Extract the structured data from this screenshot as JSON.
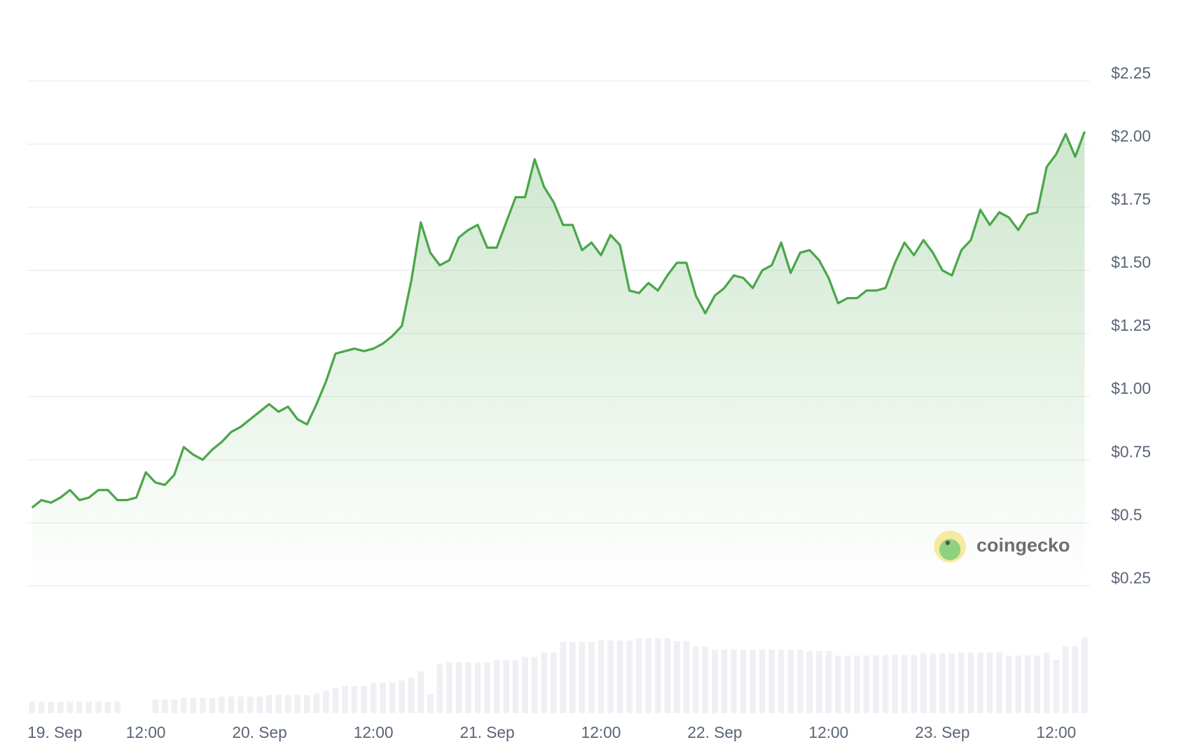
{
  "chart_data": {
    "type": "line",
    "categories": [
      "19. Sep",
      null,
      null,
      null,
      null,
      null,
      null,
      null,
      null,
      null,
      null,
      null,
      "12:00",
      null,
      null,
      null,
      null,
      null,
      null,
      null,
      null,
      null,
      null,
      null,
      "20. Sep",
      null,
      null,
      null,
      null,
      null,
      null,
      null,
      null,
      null,
      null,
      null,
      "12:00",
      null,
      null,
      null,
      null,
      null,
      null,
      null,
      null,
      null,
      null,
      null,
      "21. Sep",
      null,
      null,
      null,
      null,
      null,
      null,
      null,
      null,
      null,
      null,
      null,
      "12:00",
      null,
      null,
      null,
      null,
      null,
      null,
      null,
      null,
      null,
      null,
      null,
      "22. Sep",
      null,
      null,
      null,
      null,
      null,
      null,
      null,
      null,
      null,
      null,
      null,
      "12:00",
      null,
      null,
      null,
      null,
      null,
      null,
      null,
      null,
      null,
      null,
      null,
      "23. Sep",
      null,
      null,
      null,
      null,
      null,
      null,
      null,
      null,
      null,
      null,
      null,
      "12:00",
      null,
      null,
      null
    ],
    "values": [
      0.56,
      0.59,
      0.58,
      0.6,
      0.63,
      0.59,
      0.6,
      0.63,
      0.63,
      0.59,
      0.59,
      0.6,
      0.7,
      0.66,
      0.65,
      0.69,
      0.8,
      0.77,
      0.75,
      0.79,
      0.82,
      0.86,
      0.88,
      0.91,
      0.94,
      0.97,
      0.94,
      0.96,
      0.91,
      0.89,
      0.97,
      1.06,
      1.17,
      1.18,
      1.19,
      1.18,
      1.19,
      1.21,
      1.24,
      1.28,
      1.46,
      1.69,
      1.57,
      1.52,
      1.54,
      1.63,
      1.66,
      1.68,
      1.59,
      1.59,
      1.69,
      1.79,
      1.79,
      1.94,
      1.83,
      1.77,
      1.68,
      1.68,
      1.58,
      1.61,
      1.56,
      1.64,
      1.6,
      1.42,
      1.41,
      1.45,
      1.42,
      1.48,
      1.53,
      1.53,
      1.4,
      1.33,
      1.4,
      1.43,
      1.48,
      1.47,
      1.43,
      1.5,
      1.52,
      1.61,
      1.49,
      1.57,
      1.58,
      1.54,
      1.47,
      1.37,
      1.39,
      1.39,
      1.42,
      1.42,
      1.43,
      1.53,
      1.61,
      1.56,
      1.62,
      1.57,
      1.5,
      1.48,
      1.58,
      1.62,
      1.74,
      1.68,
      1.73,
      1.71,
      1.66,
      1.72,
      1.73,
      1.91,
      1.96,
      2.04,
      1.95,
      2.05
    ],
    "color": "#4ba64a",
    "volume": [
      15,
      15,
      15,
      15,
      15,
      15,
      15,
      15,
      15,
      15,
      null,
      null,
      null,
      18,
      18,
      18,
      20,
      20,
      20,
      20,
      22,
      22,
      22,
      22,
      22,
      24,
      24,
      24,
      24,
      24,
      26,
      30,
      33,
      36,
      36,
      36,
      40,
      40,
      40,
      43,
      47,
      55,
      25,
      65,
      67,
      67,
      67,
      67,
      67,
      70,
      70,
      70,
      74,
      74,
      80,
      80,
      94,
      94,
      94,
      94,
      96,
      96,
      96,
      96,
      99,
      99,
      99,
      99,
      95,
      95,
      88,
      88,
      84,
      84,
      84,
      84,
      84,
      84,
      84,
      84,
      84,
      84,
      82,
      82,
      82,
      76,
      76,
      76,
      76,
      76,
      77,
      77,
      77,
      77,
      79,
      79,
      79,
      79,
      80,
      80,
      80,
      80,
      80,
      76,
      76,
      76,
      76,
      80,
      70,
      88,
      88,
      100
    ],
    "volume_color": "#eef0f3",
    "ylim": [
      0.25,
      2.25
    ],
    "yticks": [
      {
        "value": 0.25,
        "label": "$0.25"
      },
      {
        "value": 0.5,
        "label": "$0.5"
      },
      {
        "value": 0.75,
        "label": "$0.75"
      },
      {
        "value": 1,
        "label": "$1.00"
      },
      {
        "value": 1.25,
        "label": "$1.25"
      },
      {
        "value": 1.5,
        "label": "$1.50"
      },
      {
        "value": 1.75,
        "label": "$1.75"
      },
      {
        "value": 2,
        "label": "$2.00"
      },
      {
        "value": 2.25,
        "label": "$2.25"
      }
    ],
    "grid": true
  },
  "watermark": "coingecko"
}
